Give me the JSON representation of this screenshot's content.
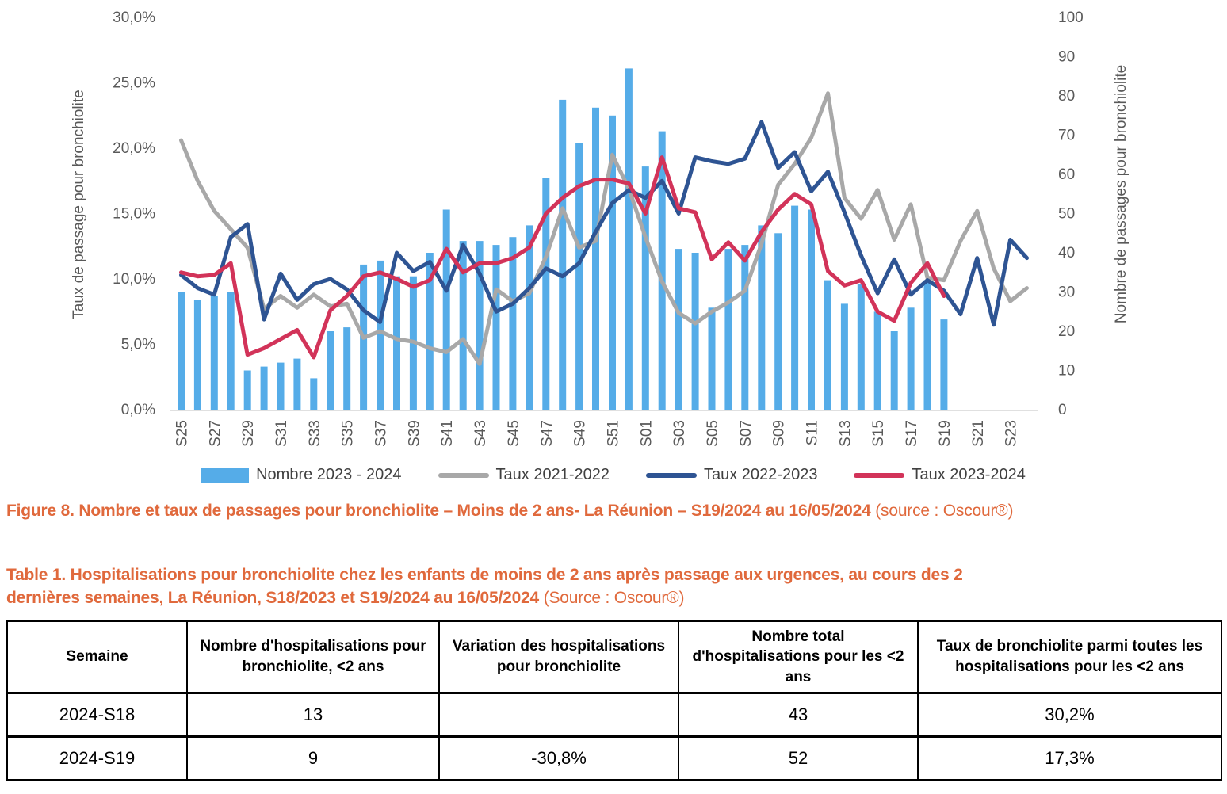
{
  "chart": {
    "left_axis": {
      "title": "Taux de passage pour bronchiolite",
      "ticks": [
        "0,0%",
        "5,0%",
        "10,0%",
        "15,0%",
        "20,0%",
        "25,0%",
        "30,0%"
      ]
    },
    "right_axis": {
      "title": "Nombre de passages pour bronchiolite",
      "ticks": [
        "0",
        "10",
        "20",
        "30",
        "40",
        "50",
        "60",
        "70",
        "80",
        "90",
        "100"
      ]
    }
  },
  "chart_data": {
    "type": "combo-bar-line",
    "title": "",
    "x": [
      "S25",
      "S26",
      "S27",
      "S28",
      "S29",
      "S30",
      "S31",
      "S32",
      "S33",
      "S34",
      "S35",
      "S36",
      "S37",
      "S38",
      "S39",
      "S40",
      "S41",
      "S42",
      "S43",
      "S44",
      "S45",
      "S46",
      "S47",
      "S48",
      "S49",
      "S50",
      "S51",
      "S52",
      "S01",
      "S02",
      "S03",
      "S04",
      "S05",
      "S06",
      "S07",
      "S08",
      "S09",
      "S10",
      "S11",
      "S12",
      "S13",
      "S14",
      "S15",
      "S16",
      "S17",
      "S18",
      "S19",
      "S20",
      "S21",
      "S22",
      "S23",
      "S24"
    ],
    "x_label_interval": 2,
    "left_ylim": [
      0,
      30
    ],
    "right_ylim": [
      0,
      100
    ],
    "grid": false,
    "legend_position": "bottom",
    "series": [
      {
        "name": "Nombre 2023 - 2024",
        "type": "bar",
        "axis": "right",
        "color": "#55ACE8",
        "values": [
          30,
          28,
          29,
          30,
          10,
          11,
          12,
          13,
          8,
          20,
          21,
          37,
          38,
          34,
          34,
          40,
          51,
          43,
          43,
          42,
          44,
          47,
          59,
          79,
          68,
          77,
          75,
          87,
          62,
          71,
          41,
          40,
          26,
          41,
          42,
          47,
          45,
          52,
          51,
          33,
          27,
          32,
          25,
          20,
          26,
          33,
          23,
          null,
          null,
          null,
          null,
          null
        ]
      },
      {
        "name": "Taux 2021-2022",
        "type": "line",
        "axis": "left",
        "unit": "%",
        "color": "#A8A8A8",
        "values": [
          20.6,
          17.5,
          15.2,
          13.8,
          12.4,
          7.7,
          8.7,
          7.8,
          8.8,
          7.9,
          8.1,
          5.5,
          6.0,
          5.4,
          5.2,
          4.7,
          4.4,
          5.4,
          3.5,
          9.2,
          8.3,
          8.9,
          11.7,
          15.4,
          12.4,
          12.9,
          19.5,
          16.9,
          13.2,
          9.8,
          7.4,
          6.6,
          7.5,
          8.2,
          9.1,
          12.7,
          17.2,
          18.8,
          20.8,
          24.2,
          16.2,
          14.6,
          16.8,
          13.0,
          15.7,
          10.1,
          9.9,
          12.9,
          15.2,
          10.8,
          8.3,
          9.3
        ]
      },
      {
        "name": "Taux 2022-2023",
        "type": "line",
        "axis": "left",
        "unit": "%",
        "color": "#2E5493",
        "values": [
          10.3,
          9.3,
          8.8,
          13.2,
          14.2,
          6.9,
          10.4,
          8.4,
          9.6,
          10.0,
          9.2,
          7.6,
          6.7,
          12.0,
          10.6,
          11.3,
          9.1,
          12.6,
          10.4,
          7.5,
          8.1,
          9.3,
          10.8,
          10.2,
          11.2,
          13.6,
          15.8,
          16.8,
          16.2,
          17.5,
          15.0,
          19.3,
          19.0,
          18.8,
          19.2,
          22.0,
          18.5,
          19.7,
          16.7,
          18.2,
          15.1,
          11.8,
          8.9,
          11.5,
          8.8,
          9.9,
          9.1,
          7.3,
          11.6,
          6.5,
          13.0,
          11.6
        ]
      },
      {
        "name": "Taux 2023-2024",
        "type": "line",
        "axis": "left",
        "unit": "%",
        "color": "#D23359",
        "values": [
          10.5,
          10.2,
          10.3,
          11.2,
          4.2,
          4.7,
          5.4,
          6.1,
          4.0,
          7.6,
          8.7,
          10.2,
          10.5,
          10.0,
          9.4,
          9.9,
          12.3,
          10.5,
          11.2,
          11.2,
          11.6,
          12.4,
          15.0,
          16.2,
          17.1,
          17.6,
          17.6,
          17.3,
          15.0,
          19.3,
          15.4,
          15.1,
          11.5,
          12.8,
          11.4,
          13.6,
          15.3,
          16.5,
          15.7,
          10.6,
          9.5,
          9.9,
          7.5,
          6.8,
          9.7,
          11.2,
          8.7,
          null,
          null,
          null,
          null,
          null
        ]
      }
    ]
  },
  "figure_caption": {
    "bold": "Figure 8. Nombre et taux de passages pour bronchiolite – Moins de 2 ans- La Réunion – S19/2024 au 16/05/2024 ",
    "source": "(source : Oscour®)"
  },
  "table_title": {
    "bold": "Table 1. Hospitalisations pour bronchiolite chez les enfants de moins de 2 ans après passage aux urgences, au cours des 2 dernières semaines, La Réunion, S18/2023 et S19/2024 au 16/05/2024 ",
    "source": "(Source : Oscour®)"
  },
  "table": {
    "headers": [
      "Semaine",
      "Nombre d'hospitalisations pour bronchiolite, <2 ans",
      "Variation des hospitalisations pour bronchiolite",
      "Nombre total d'hospitalisations pour les <2 ans",
      "Taux de bronchiolite parmi toutes les hospitalisations pour les <2 ans"
    ],
    "rows": [
      {
        "cells": [
          "2024-S18",
          "13",
          "",
          "43",
          "30,2%"
        ]
      },
      {
        "cells": [
          "2024-S19",
          "9",
          "-30,8%",
          "52",
          "17,3%"
        ]
      }
    ]
  }
}
